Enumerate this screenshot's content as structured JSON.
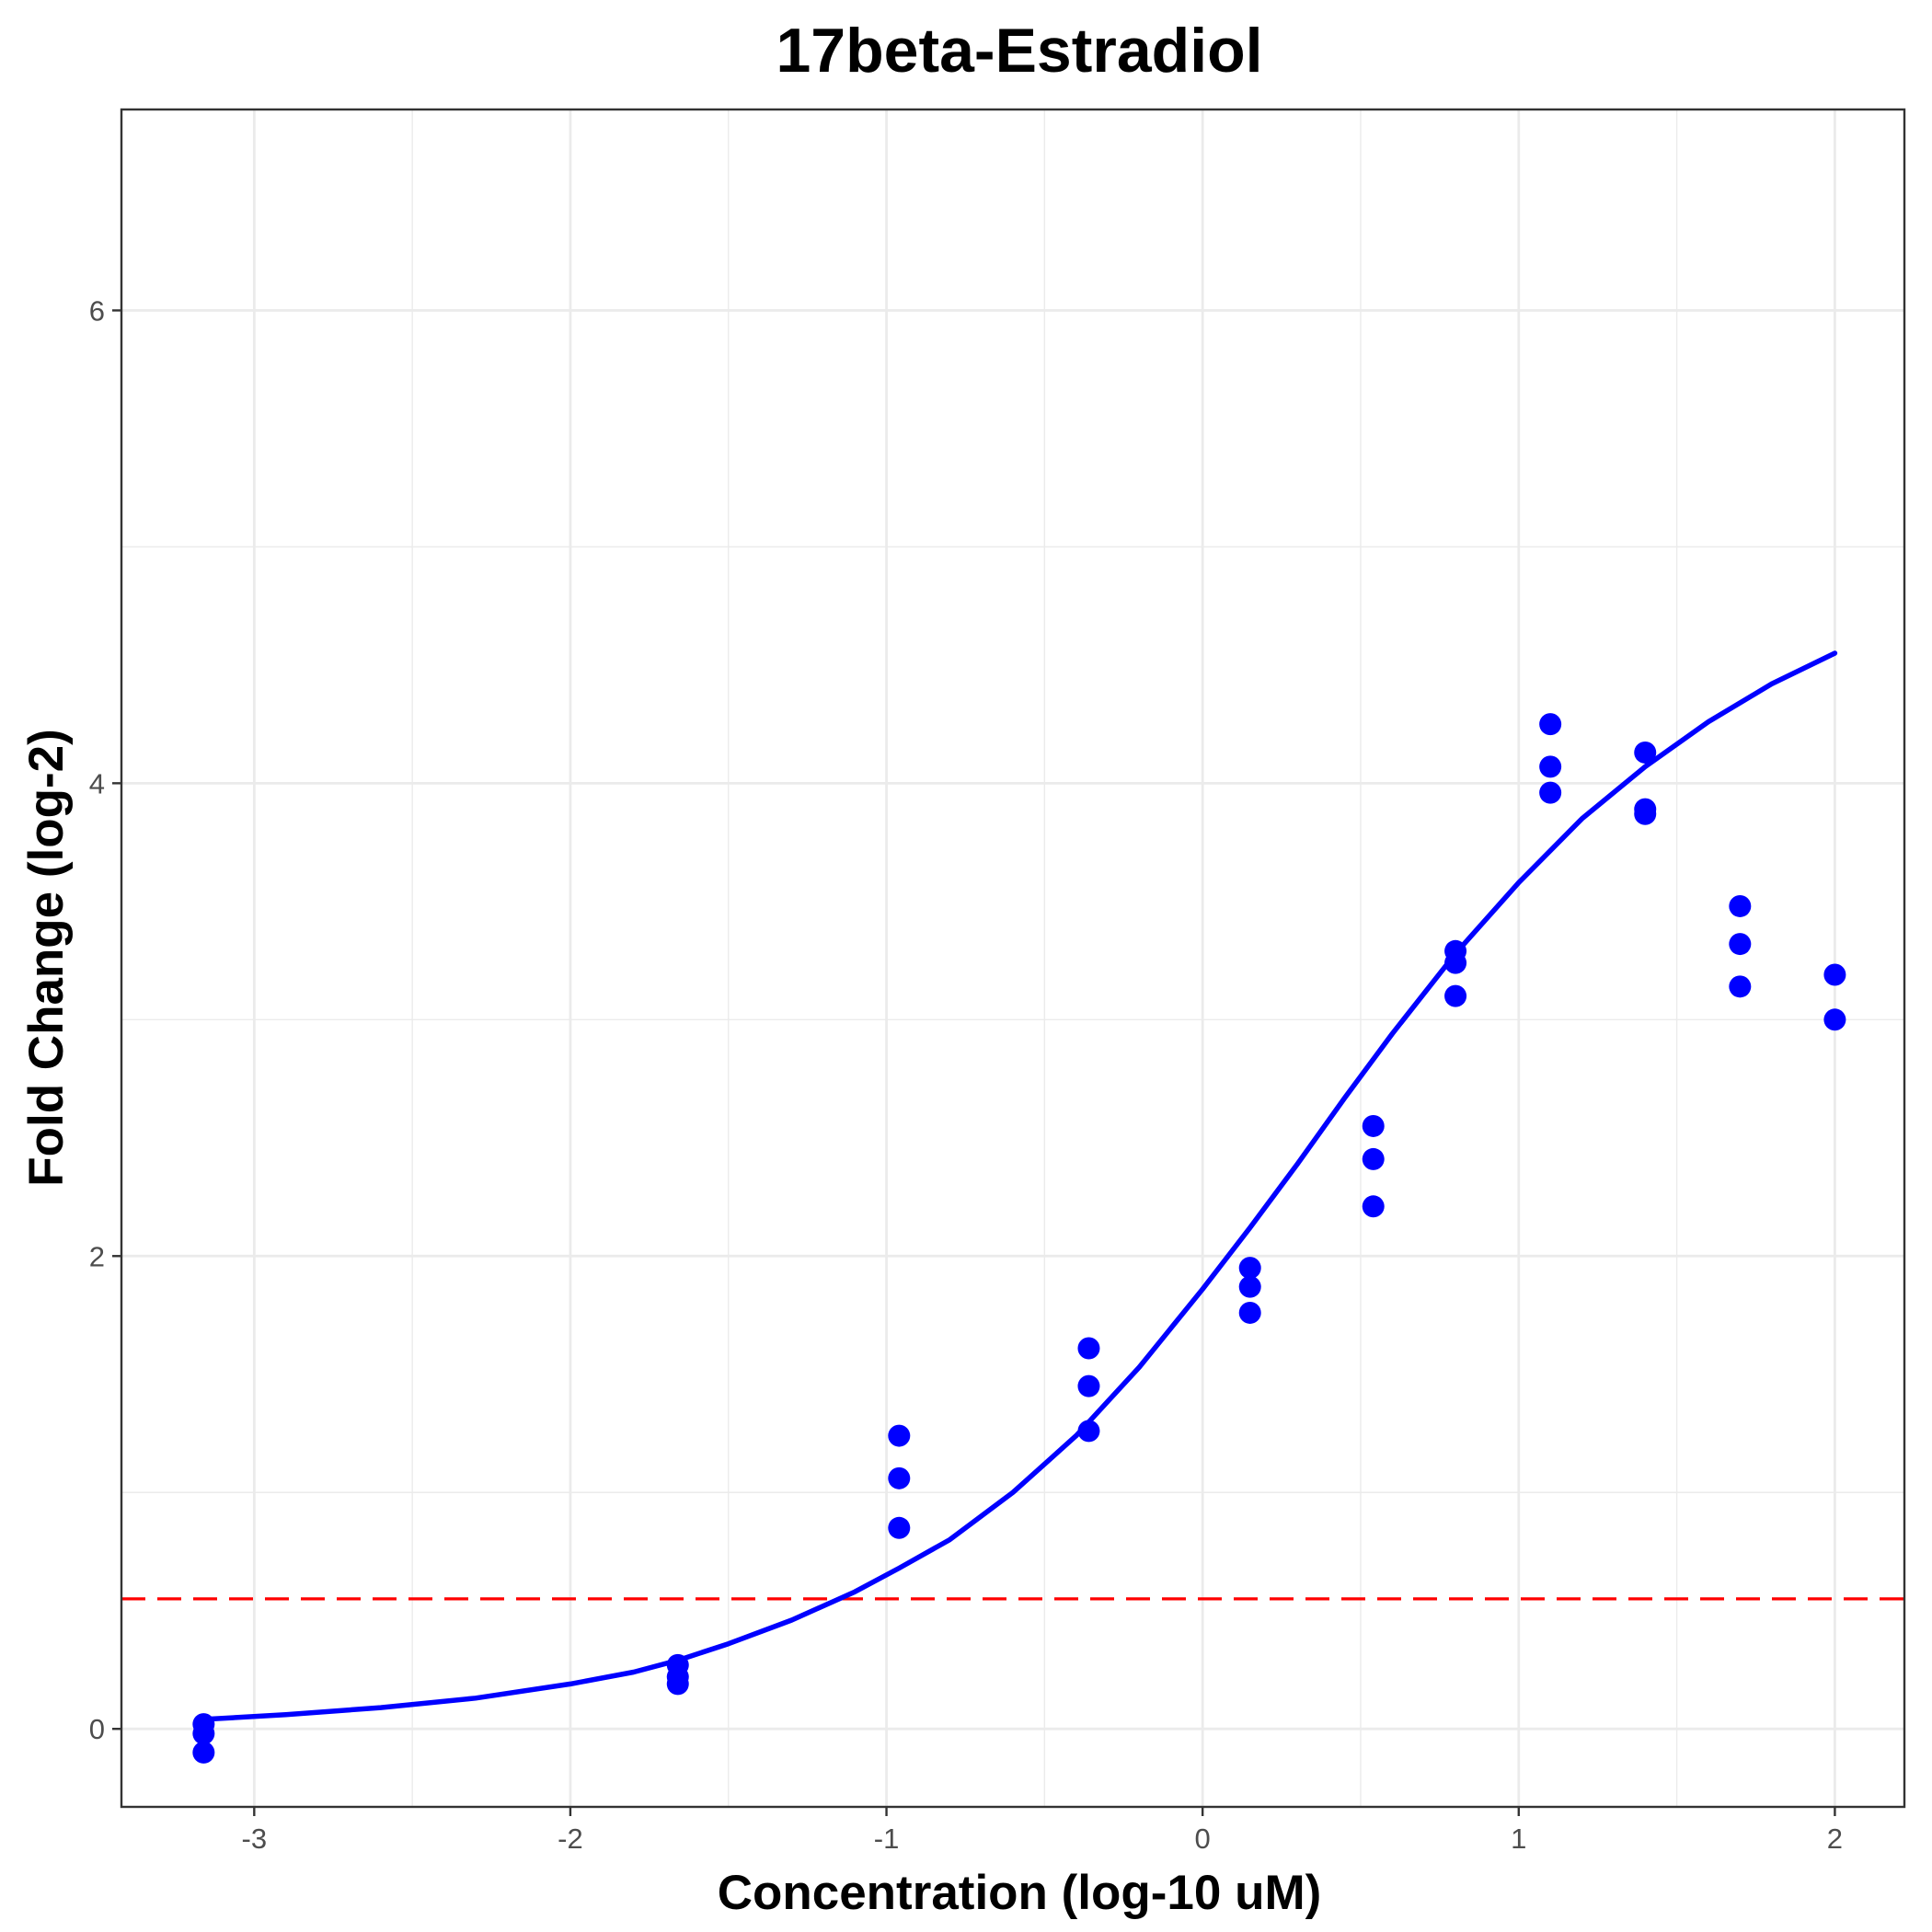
{
  "chart_data": {
    "type": "scatter",
    "title": "17beta-Estradiol",
    "xlabel": "Concentration (log-10 uM)",
    "ylabel": "Fold Change (log-2)",
    "xlim": [
      -3.42,
      2.22
    ],
    "ylim": [
      -0.33,
      6.85
    ],
    "x_ticks": [
      -3,
      -2,
      -1,
      0,
      1,
      2
    ],
    "x_tick_labels": [
      "-3",
      "-2",
      "-1",
      "0",
      "1",
      "2"
    ],
    "y_ticks": [
      0,
      2,
      4,
      6
    ],
    "y_tick_labels": [
      "0",
      "2",
      "4",
      "6"
    ],
    "x_minor_grid": [
      -2.5,
      -1.5,
      -0.5,
      0.5,
      1.5
    ],
    "y_minor_grid": [
      1,
      3,
      5
    ],
    "grid": true,
    "colors": {
      "points": "#0000ff",
      "curve": "#0000ff",
      "threshold": "#ff0000",
      "grid": "#ebebeb"
    },
    "points": [
      {
        "x": -3.16,
        "y": 0.02
      },
      {
        "x": -3.16,
        "y": -0.02
      },
      {
        "x": -3.16,
        "y": -0.1
      },
      {
        "x": -1.66,
        "y": 0.27
      },
      {
        "x": -1.66,
        "y": 0.22
      },
      {
        "x": -1.66,
        "y": 0.19
      },
      {
        "x": -0.96,
        "y": 1.24
      },
      {
        "x": -0.96,
        "y": 1.06
      },
      {
        "x": -0.96,
        "y": 0.85
      },
      {
        "x": -0.36,
        "y": 1.61
      },
      {
        "x": -0.36,
        "y": 1.45
      },
      {
        "x": -0.36,
        "y": 1.26
      },
      {
        "x": 0.15,
        "y": 1.95
      },
      {
        "x": 0.15,
        "y": 1.87
      },
      {
        "x": 0.15,
        "y": 1.76
      },
      {
        "x": 0.54,
        "y": 2.55
      },
      {
        "x": 0.54,
        "y": 2.41
      },
      {
        "x": 0.54,
        "y": 2.21
      },
      {
        "x": 0.8,
        "y": 3.29
      },
      {
        "x": 0.8,
        "y": 3.24
      },
      {
        "x": 0.8,
        "y": 3.1
      },
      {
        "x": 1.1,
        "y": 4.25
      },
      {
        "x": 1.1,
        "y": 4.07
      },
      {
        "x": 1.1,
        "y": 3.96
      },
      {
        "x": 1.4,
        "y": 4.13
      },
      {
        "x": 1.4,
        "y": 3.89
      },
      {
        "x": 1.4,
        "y": 3.87
      },
      {
        "x": 1.7,
        "y": 3.48
      },
      {
        "x": 1.7,
        "y": 3.32
      },
      {
        "x": 1.7,
        "y": 3.14
      },
      {
        "x": 2.0,
        "y": 3.19
      },
      {
        "x": 2.0,
        "y": 3.0
      }
    ],
    "curve": {
      "x": [
        -3.16,
        -2.9,
        -2.6,
        -2.3,
        -2.0,
        -1.8,
        -1.66,
        -1.5,
        -1.3,
        -1.1,
        -0.96,
        -0.8,
        -0.6,
        -0.4,
        -0.2,
        0.0,
        0.15,
        0.3,
        0.45,
        0.6,
        0.8,
        1.0,
        1.2,
        1.4,
        1.6,
        1.8,
        2.0
      ],
      "y": [
        0.04,
        0.06,
        0.09,
        0.13,
        0.19,
        0.24,
        0.29,
        0.36,
        0.46,
        0.58,
        0.68,
        0.8,
        1.0,
        1.24,
        1.53,
        1.86,
        2.12,
        2.39,
        2.67,
        2.94,
        3.28,
        3.58,
        3.85,
        4.07,
        4.26,
        4.42,
        4.55
      ]
    },
    "threshold": 0.55
  }
}
